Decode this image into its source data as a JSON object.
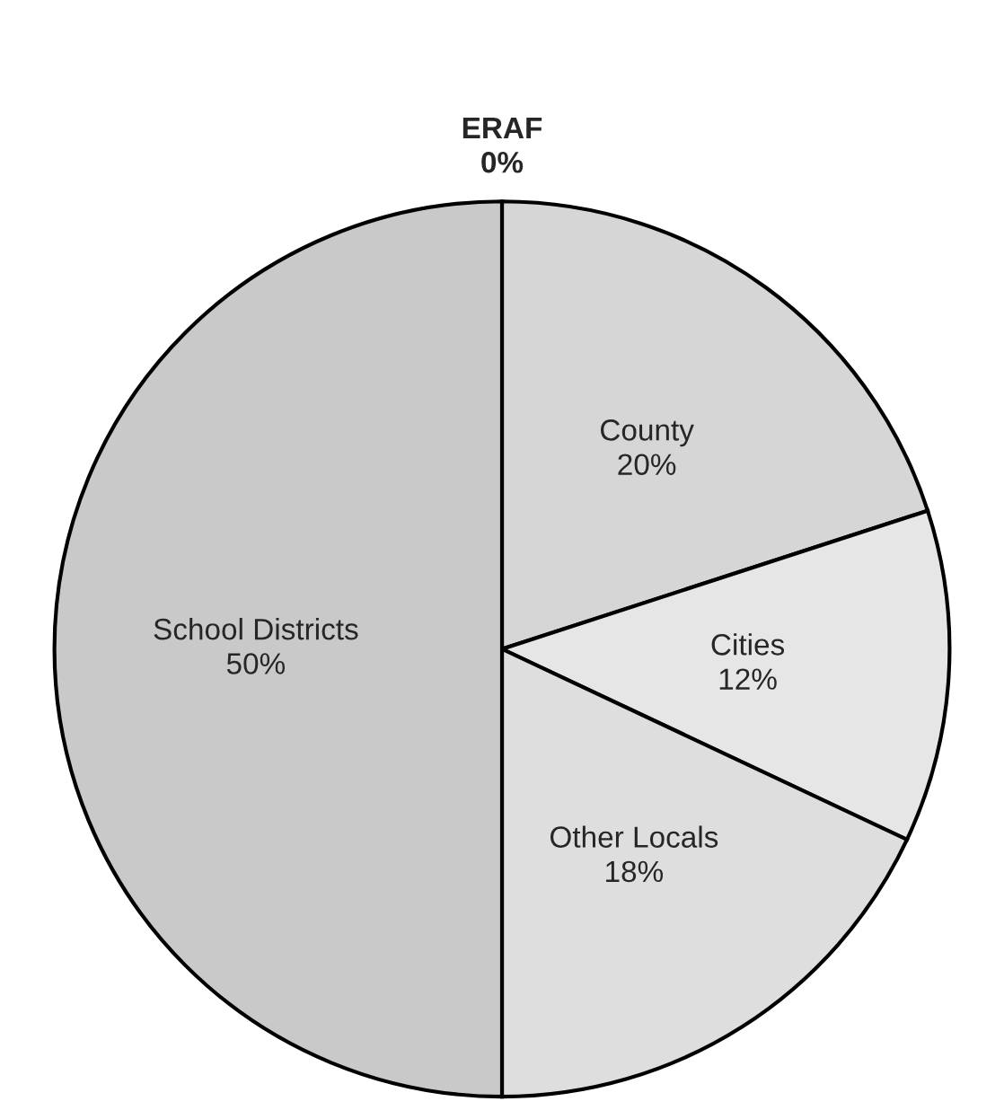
{
  "chart_data": {
    "type": "pie",
    "categories": [
      "ERAF",
      "County",
      "Cities",
      "Other Locals",
      "School Districts"
    ],
    "values": [
      0,
      20,
      12,
      18,
      50
    ],
    "value_labels": [
      "0%",
      "20%",
      "12%",
      "18%",
      "50%"
    ],
    "colors": [
      "#d0d0d0",
      "#d6d6d6",
      "#e6e6e6",
      "#dedede",
      "#c9c9c9"
    ]
  }
}
